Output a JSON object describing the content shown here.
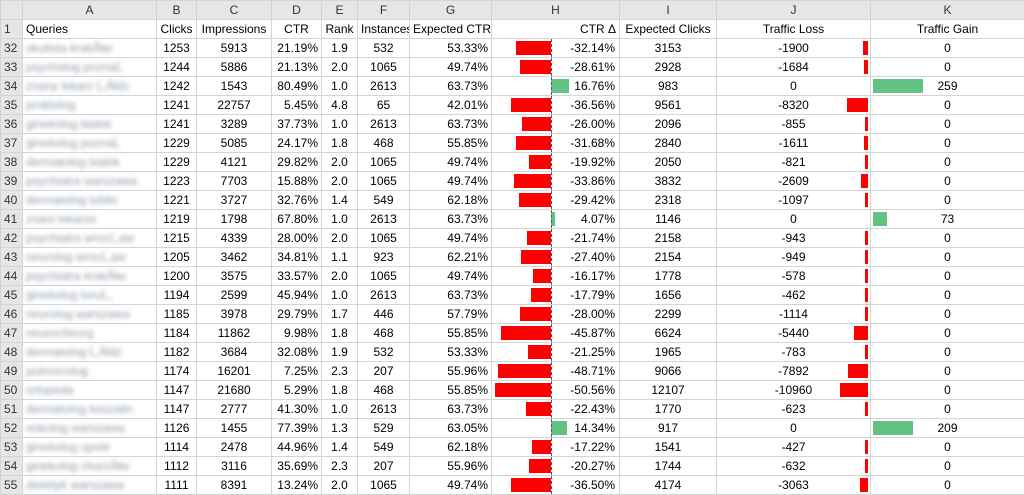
{
  "colors": {
    "negative": "#ff0000",
    "positive": "#63c384",
    "header_bg": "#e6e6e6",
    "grid": "#d4d4d4"
  },
  "columns": [
    "A",
    "B",
    "C",
    "D",
    "E",
    "F",
    "G",
    "H",
    "I",
    "J",
    "K"
  ],
  "header_row": {
    "num": "1",
    "cells": [
      "Queries",
      "Clicks",
      "Impressions",
      "CTR",
      "Rank",
      "Instances",
      "Expected CTR",
      "CTR Δ",
      "Expected Clicks",
      "Traffic Loss",
      "Traffic Gain"
    ]
  },
  "rows": [
    {
      "num": "32",
      "query": "okulista krakĂłw",
      "clicks": "1253",
      "impressions": "5913",
      "ctr": "21.19%",
      "rank": "1.9",
      "instances": "532",
      "exp_ctr": "53.33%",
      "ctr_delta": "-32.14%",
      "delta_value": -32.14,
      "exp_clicks": "3153",
      "loss": "-1900",
      "loss_value": -1900,
      "gain": "0",
      "gain_value": 0
    },
    {
      "num": "33",
      "query": "psycholog poznaĹ",
      "clicks": "1244",
      "impressions": "5886",
      "ctr": "21.13%",
      "rank": "2.0",
      "instances": "1065",
      "exp_ctr": "49.74%",
      "ctr_delta": "-28.61%",
      "delta_value": -28.61,
      "exp_clicks": "2928",
      "loss": "-1684",
      "loss_value": -1684,
      "gain": "0",
      "gain_value": 0
    },
    {
      "num": "34",
      "query": "znany lekarz Ĺ‚Ăłdz",
      "clicks": "1242",
      "impressions": "1543",
      "ctr": "80.49%",
      "rank": "1.0",
      "instances": "2613",
      "exp_ctr": "63.73%",
      "ctr_delta": "16.76%",
      "delta_value": 16.76,
      "exp_clicks": "983",
      "loss": "0",
      "loss_value": 0,
      "gain": "259",
      "gain_value": 259
    },
    {
      "num": "35",
      "query": "proktolog",
      "clicks": "1241",
      "impressions": "22757",
      "ctr": "5.45%",
      "rank": "4.8",
      "instances": "65",
      "exp_ctr": "42.01%",
      "ctr_delta": "-36.56%",
      "delta_value": -36.56,
      "exp_clicks": "9561",
      "loss": "-8320",
      "loss_value": -8320,
      "gain": "0",
      "gain_value": 0
    },
    {
      "num": "36",
      "query": "ginekolog bialsk",
      "clicks": "1241",
      "impressions": "3289",
      "ctr": "37.73%",
      "rank": "1.0",
      "instances": "2613",
      "exp_ctr": "63.73%",
      "ctr_delta": "-26.00%",
      "delta_value": -26.0,
      "exp_clicks": "2096",
      "loss": "-855",
      "loss_value": -855,
      "gain": "0",
      "gain_value": 0
    },
    {
      "num": "37",
      "query": "ginekolog poznaĹ",
      "clicks": "1229",
      "impressions": "5085",
      "ctr": "24.17%",
      "rank": "1.8",
      "instances": "468",
      "exp_ctr": "55.85%",
      "ctr_delta": "-31.68%",
      "delta_value": -31.68,
      "exp_clicks": "2840",
      "loss": "-1611",
      "loss_value": -1611,
      "gain": "0",
      "gain_value": 0
    },
    {
      "num": "38",
      "query": "dermatolog bialsk",
      "clicks": "1229",
      "impressions": "4121",
      "ctr": "29.82%",
      "rank": "2.0",
      "instances": "1065",
      "exp_ctr": "49.74%",
      "ctr_delta": "-19.92%",
      "delta_value": -19.92,
      "exp_clicks": "2050",
      "loss": "-821",
      "loss_value": -821,
      "gain": "0",
      "gain_value": 0
    },
    {
      "num": "39",
      "query": "psychiatra warszawa",
      "clicks": "1223",
      "impressions": "7703",
      "ctr": "15.88%",
      "rank": "2.0",
      "instances": "1065",
      "exp_ctr": "49.74%",
      "ctr_delta": "-33.86%",
      "delta_value": -33.86,
      "exp_clicks": "3832",
      "loss": "-2609",
      "loss_value": -2609,
      "gain": "0",
      "gain_value": 0
    },
    {
      "num": "40",
      "query": "dermatolog lublin",
      "clicks": "1221",
      "impressions": "3727",
      "ctr": "32.76%",
      "rank": "1.4",
      "instances": "549",
      "exp_ctr": "62.18%",
      "ctr_delta": "-29.42%",
      "delta_value": -29.42,
      "exp_clicks": "2318",
      "loss": "-1097",
      "loss_value": -1097,
      "gain": "0",
      "gain_value": 0
    },
    {
      "num": "41",
      "query": "znani lekarze",
      "clicks": "1219",
      "impressions": "1798",
      "ctr": "67.80%",
      "rank": "1.0",
      "instances": "2613",
      "exp_ctr": "63.73%",
      "ctr_delta": "4.07%",
      "delta_value": 4.07,
      "exp_clicks": "1146",
      "loss": "0",
      "loss_value": 0,
      "gain": "73",
      "gain_value": 73
    },
    {
      "num": "42",
      "query": "psychiatra wrocĹ‚aw",
      "clicks": "1215",
      "impressions": "4339",
      "ctr": "28.00%",
      "rank": "2.0",
      "instances": "1065",
      "exp_ctr": "49.74%",
      "ctr_delta": "-21.74%",
      "delta_value": -21.74,
      "exp_clicks": "2158",
      "loss": "-943",
      "loss_value": -943,
      "gain": "0",
      "gain_value": 0
    },
    {
      "num": "43",
      "query": "neurolog wrocĹ‚aw",
      "clicks": "1205",
      "impressions": "3462",
      "ctr": "34.81%",
      "rank": "1.1",
      "instances": "923",
      "exp_ctr": "62.21%",
      "ctr_delta": "-27.40%",
      "delta_value": -27.4,
      "exp_clicks": "2154",
      "loss": "-949",
      "loss_value": -949,
      "gain": "0",
      "gain_value": 0
    },
    {
      "num": "44",
      "query": "psychiatra krakĂłw",
      "clicks": "1200",
      "impressions": "3575",
      "ctr": "33.57%",
      "rank": "2.0",
      "instances": "1065",
      "exp_ctr": "49.74%",
      "ctr_delta": "-16.17%",
      "delta_value": -16.17,
      "exp_clicks": "1778",
      "loss": "-578",
      "loss_value": -578,
      "gain": "0",
      "gain_value": 0
    },
    {
      "num": "45",
      "query": "ginekolog toruĹ„",
      "clicks": "1194",
      "impressions": "2599",
      "ctr": "45.94%",
      "rank": "1.0",
      "instances": "2613",
      "exp_ctr": "63.73%",
      "ctr_delta": "-17.79%",
      "delta_value": -17.79,
      "exp_clicks": "1656",
      "loss": "-462",
      "loss_value": -462,
      "gain": "0",
      "gain_value": 0
    },
    {
      "num": "46",
      "query": "neurolog warszawa",
      "clicks": "1185",
      "impressions": "3978",
      "ctr": "29.79%",
      "rank": "1.7",
      "instances": "446",
      "exp_ctr": "57.79%",
      "ctr_delta": "-28.00%",
      "delta_value": -28.0,
      "exp_clicks": "2299",
      "loss": "-1114",
      "loss_value": -1114,
      "gain": "0",
      "gain_value": 0
    },
    {
      "num": "47",
      "query": "neurochirurg",
      "clicks": "1184",
      "impressions": "11862",
      "ctr": "9.98%",
      "rank": "1.8",
      "instances": "468",
      "exp_ctr": "55.85%",
      "ctr_delta": "-45.87%",
      "delta_value": -45.87,
      "exp_clicks": "6624",
      "loss": "-5440",
      "loss_value": -5440,
      "gain": "0",
      "gain_value": 0
    },
    {
      "num": "48",
      "query": "dermatolog Ĺ‚Ăłdz",
      "clicks": "1182",
      "impressions": "3684",
      "ctr": "32.08%",
      "rank": "1.9",
      "instances": "532",
      "exp_ctr": "53.33%",
      "ctr_delta": "-21.25%",
      "delta_value": -21.25,
      "exp_clicks": "1965",
      "loss": "-783",
      "loss_value": -783,
      "gain": "0",
      "gain_value": 0
    },
    {
      "num": "49",
      "query": "pulmonolog",
      "clicks": "1174",
      "impressions": "16201",
      "ctr": "7.25%",
      "rank": "2.3",
      "instances": "207",
      "exp_ctr": "55.96%",
      "ctr_delta": "-48.71%",
      "delta_value": -48.71,
      "exp_clicks": "9066",
      "loss": "-7892",
      "loss_value": -7892,
      "gain": "0",
      "gain_value": 0
    },
    {
      "num": "50",
      "query": "ortopeda",
      "clicks": "1147",
      "impressions": "21680",
      "ctr": "5.29%",
      "rank": "1.8",
      "instances": "468",
      "exp_ctr": "55.85%",
      "ctr_delta": "-50.56%",
      "delta_value": -50.56,
      "exp_clicks": "12107",
      "loss": "-10960",
      "loss_value": -10960,
      "gain": "0",
      "gain_value": 0
    },
    {
      "num": "51",
      "query": "dermatolog koszalin",
      "clicks": "1147",
      "impressions": "2777",
      "ctr": "41.30%",
      "rank": "1.0",
      "instances": "2613",
      "exp_ctr": "63.73%",
      "ctr_delta": "-22.43%",
      "delta_value": -22.43,
      "exp_clicks": "1770",
      "loss": "-623",
      "loss_value": -623,
      "gain": "0",
      "gain_value": 0
    },
    {
      "num": "52",
      "query": "onkolog warszawa",
      "clicks": "1126",
      "impressions": "1455",
      "ctr": "77.39%",
      "rank": "1.3",
      "instances": "529",
      "exp_ctr": "63.05%",
      "ctr_delta": "14.34%",
      "delta_value": 14.34,
      "exp_clicks": "917",
      "loss": "0",
      "loss_value": 0,
      "gain": "209",
      "gain_value": 209
    },
    {
      "num": "53",
      "query": "ginekolog opole",
      "clicks": "1114",
      "impressions": "2478",
      "ctr": "44.96%",
      "rank": "1.4",
      "instances": "549",
      "exp_ctr": "62.18%",
      "ctr_delta": "-17.22%",
      "delta_value": -17.22,
      "exp_clicks": "1541",
      "loss": "-427",
      "loss_value": -427,
      "gain": "0",
      "gain_value": 0
    },
    {
      "num": "54",
      "query": "ginekolog chorzĂłw",
      "clicks": "1112",
      "impressions": "3116",
      "ctr": "35.69%",
      "rank": "2.3",
      "instances": "207",
      "exp_ctr": "55.96%",
      "ctr_delta": "-20.27%",
      "delta_value": -20.27,
      "exp_clicks": "1744",
      "loss": "-632",
      "loss_value": -632,
      "gain": "0",
      "gain_value": 0
    },
    {
      "num": "55",
      "query": "dietetyk warszawa",
      "clicks": "1111",
      "impressions": "8391",
      "ctr": "13.24%",
      "rank": "2.0",
      "instances": "1065",
      "exp_ctr": "49.74%",
      "ctr_delta": "-36.50%",
      "delta_value": -36.5,
      "exp_clicks": "4174",
      "loss": "-3063",
      "loss_value": -3063,
      "gain": "0",
      "gain_value": 0
    }
  ]
}
